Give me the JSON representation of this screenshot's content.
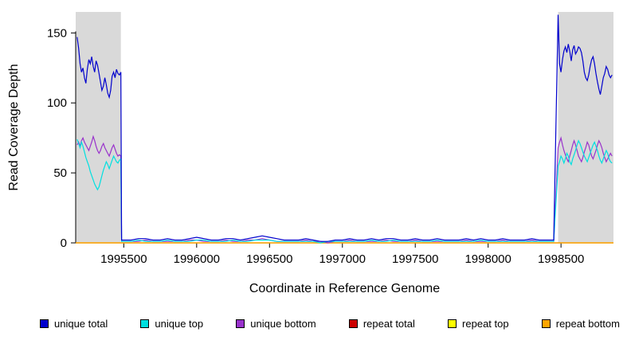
{
  "chart_data": {
    "type": "line",
    "title": "",
    "xlabel": "Coordinate in Reference Genome",
    "ylabel": "Read Coverage Depth",
    "xlim": [
      1995170,
      1998860
    ],
    "ylim": [
      0,
      165
    ],
    "xticks": [
      1995500,
      1996000,
      1996500,
      1997000,
      1997500,
      1998000,
      1998500
    ],
    "yticks": [
      0,
      50,
      100,
      150
    ],
    "grid": false,
    "legend_position": "bottom",
    "shaded_regions": [
      {
        "x0": 1995170,
        "x1": 1995480,
        "color": "#D9D9D9"
      },
      {
        "x0": 1998480,
        "x1": 1998860,
        "color": "#D9D9D9"
      }
    ],
    "x": [
      1995180,
      1995190,
      1995200,
      1995210,
      1995220,
      1995230,
      1995240,
      1995250,
      1995260,
      1995270,
      1995280,
      1995290,
      1995300,
      1995310,
      1995320,
      1995330,
      1995340,
      1995350,
      1995360,
      1995370,
      1995380,
      1995390,
      1995400,
      1995410,
      1995420,
      1995430,
      1995440,
      1995450,
      1995460,
      1995470,
      1995480,
      1995485,
      1995500,
      1995550,
      1995600,
      1995650,
      1995700,
      1995750,
      1995800,
      1995850,
      1995900,
      1995950,
      1996000,
      1996050,
      1996100,
      1996150,
      1996200,
      1996250,
      1996300,
      1996350,
      1996400,
      1996450,
      1996500,
      1996550,
      1996600,
      1996650,
      1996700,
      1996750,
      1996800,
      1996850,
      1996900,
      1996950,
      1997000,
      1997050,
      1997100,
      1997150,
      1997200,
      1997250,
      1997300,
      1997350,
      1997400,
      1997450,
      1997500,
      1997550,
      1997600,
      1997650,
      1997700,
      1997750,
      1997800,
      1997850,
      1997900,
      1997950,
      1998000,
      1998050,
      1998100,
      1998150,
      1998200,
      1998250,
      1998300,
      1998350,
      1998400,
      1998450,
      1998480,
      1998490,
      1998500,
      1998510,
      1998520,
      1998530,
      1998540,
      1998550,
      1998560,
      1998570,
      1998580,
      1998590,
      1998600,
      1998610,
      1998620,
      1998630,
      1998640,
      1998650,
      1998660,
      1998670,
      1998680,
      1998690,
      1998700,
      1998710,
      1998720,
      1998730,
      1998740,
      1998750,
      1998760,
      1998770,
      1998780,
      1998790,
      1998800,
      1998810,
      1998820,
      1998830,
      1998840,
      1998850
    ],
    "series": [
      {
        "name": "unique total",
        "color": "#0000CD",
        "y": [
          147,
          139,
          128,
          122,
          125,
          118,
          114,
          124,
          131,
          128,
          133,
          126,
          122,
          130,
          127,
          121,
          115,
          109,
          112,
          118,
          113,
          107,
          104,
          109,
          119,
          122,
          118,
          124,
          121,
          120,
          122,
          2,
          2,
          2,
          3,
          3,
          2,
          2,
          3,
          2,
          2,
          3,
          4,
          3,
          2,
          2,
          3,
          3,
          2,
          3,
          4,
          5,
          4,
          3,
          2,
          2,
          2,
          3,
          2,
          1,
          1,
          2,
          2,
          3,
          2,
          2,
          3,
          2,
          3,
          3,
          2,
          2,
          3,
          2,
          2,
          3,
          2,
          2,
          2,
          3,
          2,
          3,
          2,
          2,
          3,
          2,
          2,
          2,
          3,
          2,
          2,
          2,
          163,
          128,
          122,
          131,
          137,
          140,
          136,
          142,
          137,
          130,
          138,
          141,
          135,
          137,
          140,
          139,
          136,
          130,
          122,
          118,
          116,
          120,
          126,
          131,
          133,
          128,
          121,
          115,
          110,
          106,
          112,
          118,
          121,
          126,
          124,
          120,
          118,
          120
        ]
      },
      {
        "name": "unique top",
        "color": "#00E0E0",
        "y": [
          74,
          71,
          68,
          72,
          69,
          65,
          61,
          58,
          55,
          51,
          48,
          45,
          42,
          40,
          38,
          40,
          44,
          48,
          52,
          55,
          58,
          56,
          53,
          56,
          59,
          62,
          60,
          58,
          57,
          59,
          60,
          1,
          1,
          1,
          2,
          1,
          1,
          1,
          2,
          1,
          1,
          1,
          2,
          2,
          1,
          1,
          1,
          2,
          1,
          1,
          2,
          2,
          2,
          1,
          1,
          1,
          1,
          1,
          1,
          0,
          1,
          1,
          1,
          1,
          1,
          1,
          2,
          1,
          1,
          2,
          1,
          1,
          1,
          1,
          1,
          2,
          1,
          1,
          1,
          1,
          1,
          2,
          1,
          1,
          1,
          1,
          1,
          1,
          1,
          1,
          1,
          1,
          55,
          58,
          62,
          60,
          57,
          60,
          64,
          62,
          58,
          56,
          60,
          63,
          66,
          70,
          73,
          71,
          68,
          65,
          62,
          60,
          58,
          61,
          64,
          67,
          70,
          72,
          69,
          66,
          62,
          59,
          57,
          60,
          63,
          66,
          64,
          60,
          58,
          57
        ]
      },
      {
        "name": "unique bottom",
        "color": "#9932CC",
        "y": [
          70,
          72,
          69,
          73,
          75,
          72,
          70,
          68,
          66,
          69,
          72,
          76,
          73,
          69,
          66,
          64,
          66,
          69,
          71,
          68,
          66,
          64,
          62,
          65,
          68,
          70,
          67,
          64,
          62,
          63,
          62,
          1,
          1,
          1,
          1,
          2,
          1,
          1,
          1,
          1,
          1,
          2,
          2,
          1,
          1,
          1,
          2,
          1,
          1,
          2,
          2,
          3,
          2,
          1,
          1,
          1,
          1,
          2,
          1,
          1,
          0,
          1,
          1,
          2,
          1,
          1,
          1,
          1,
          2,
          1,
          1,
          1,
          2,
          1,
          1,
          1,
          1,
          1,
          1,
          2,
          1,
          1,
          1,
          1,
          2,
          1,
          1,
          1,
          2,
          1,
          1,
          1,
          68,
          72,
          75,
          70,
          66,
          63,
          60,
          58,
          62,
          66,
          70,
          73,
          70,
          66,
          62,
          60,
          58,
          61,
          65,
          68,
          72,
          70,
          66,
          62,
          60,
          63,
          66,
          70,
          73,
          71,
          68,
          64,
          61,
          58,
          60,
          62,
          64,
          62
        ]
      },
      {
        "name": "repeat total",
        "color": "#CC0000",
        "const_y": 0
      },
      {
        "name": "repeat top",
        "color": "#FFFF00",
        "const_y": 0
      },
      {
        "name": "repeat bottom",
        "color": "#FFA500",
        "const_y": 0
      }
    ]
  }
}
